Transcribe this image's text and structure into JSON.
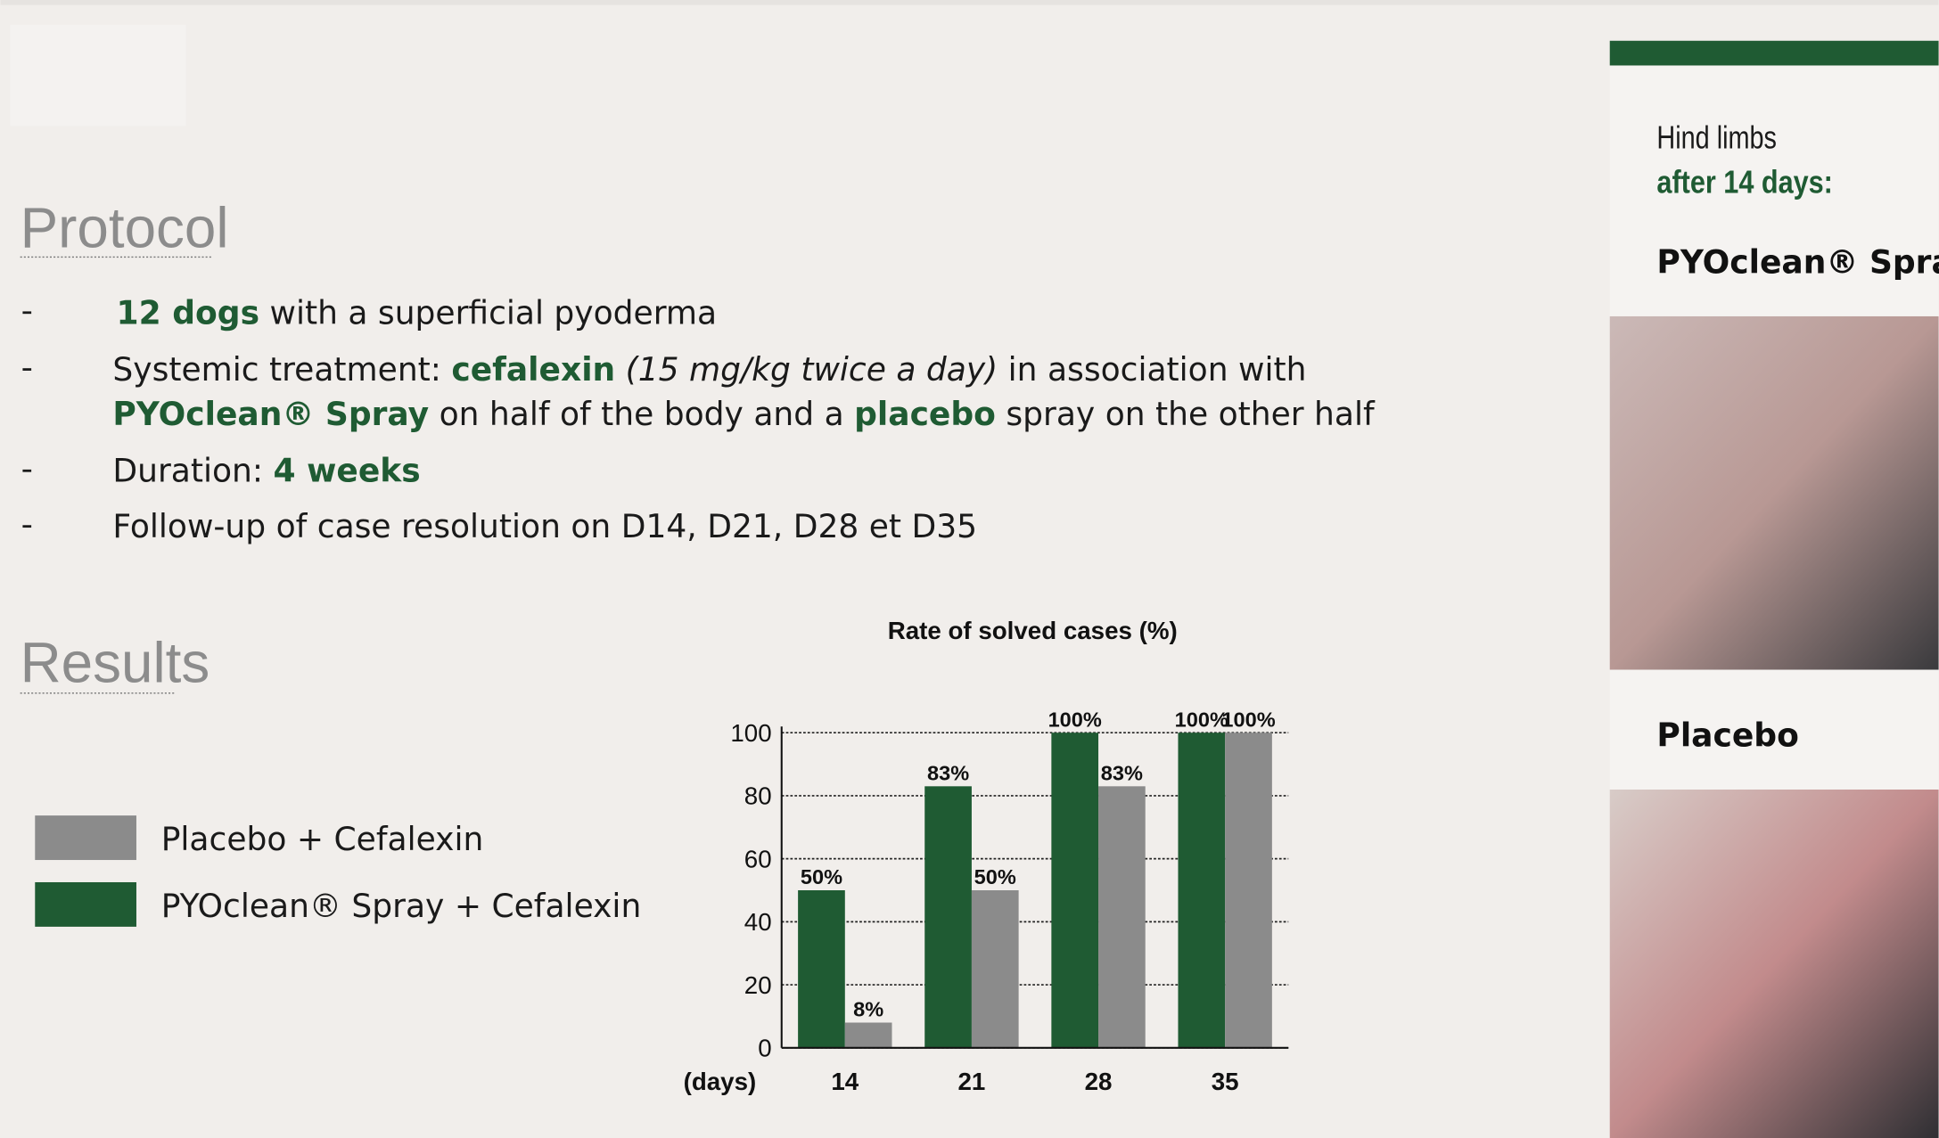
{
  "protocol": {
    "heading": "Protocol",
    "lines": [
      [
        "12 dogs",
        " with a superficial pyoderma"
      ],
      [
        "Systemic treatment: ",
        "cefalexin",
        " (15 mg/kg twice a day)",
        " in association with"
      ],
      [
        "PYOclean® Spray",
        " on half of the body and a ",
        "placebo",
        " spray on the other half"
      ],
      [
        "Duration: ",
        "4 weeks"
      ],
      [
        "Follow-up of case resolution on D14, D21, D28 et D35"
      ]
    ]
  },
  "results": {
    "heading": "Results"
  },
  "panel": {
    "caption": "Hind limbs",
    "subcaption": "after 14 days:",
    "photo_labels": [
      "PYOclean® Spray",
      "Placebo"
    ]
  },
  "chart_data": {
    "type": "bar",
    "title": "Rate of solved cases (%)",
    "x_label": "(days)",
    "categories": [
      "14",
      "21",
      "28",
      "35"
    ],
    "series": [
      {
        "name": "PYOclean® Spray + Cefalexin",
        "color": "#1f5b33",
        "values": [
          50,
          83,
          100,
          100
        ],
        "value_labels": [
          "50%",
          "83%",
          "100%",
          "100%"
        ]
      },
      {
        "name": "Placebo + Cefalexin",
        "color": "#8b8b8b",
        "values": [
          8,
          50,
          83,
          100
        ],
        "value_labels": [
          "8%",
          "50%",
          "83%",
          "100%"
        ]
      }
    ],
    "ylim": [
      0,
      100
    ],
    "yticks": [
      0,
      20,
      40,
      60,
      80,
      100
    ],
    "grid": true
  }
}
